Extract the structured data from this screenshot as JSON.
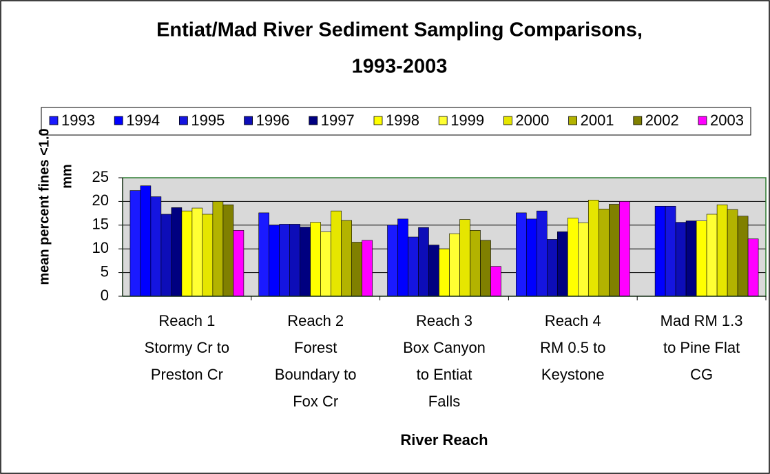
{
  "chart_data": {
    "type": "bar",
    "title": [
      "Entiat/Mad River Sediment Sampling Comparisons,",
      "1993-2003"
    ],
    "xlabel": "River Reach",
    "ylabel": [
      "mean percent fines <1.0",
      "mm"
    ],
    "categories": [
      [
        "Reach 1",
        "Stormy Cr to",
        "Preston Cr"
      ],
      [
        "Reach 2",
        "Forest",
        "Boundary to",
        "Fox Cr"
      ],
      [
        "Reach 3",
        "Box Canyon",
        "to Entiat",
        "Falls"
      ],
      [
        "Reach 4",
        "RM 0.5 to",
        "Keystone"
      ],
      [
        "Mad RM 1.3",
        "to Pine Flat",
        "CG"
      ]
    ],
    "series": [
      {
        "name": "1993",
        "color": "#1a1aff",
        "values": [
          22.3,
          17.6,
          15,
          17.6,
          null
        ]
      },
      {
        "name": "1994",
        "color": "#0000ff",
        "values": [
          23.3,
          15,
          16.3,
          16.3,
          19
        ]
      },
      {
        "name": "1995",
        "color": "#1515e0",
        "values": [
          21,
          15.2,
          12.5,
          18,
          19
        ]
      },
      {
        "name": "1996",
        "color": "#0d0db8",
        "values": [
          17.3,
          15.2,
          14.5,
          12,
          15.6
        ]
      },
      {
        "name": "1997",
        "color": "#000080",
        "values": [
          18.7,
          14.6,
          10.8,
          13.6,
          15.9
        ]
      },
      {
        "name": "1998",
        "color": "#ffff00",
        "values": [
          18,
          15.6,
          10,
          16.5,
          15.9
        ]
      },
      {
        "name": "1999",
        "color": "#ffff33",
        "values": [
          18.6,
          13.6,
          13.2,
          15.5,
          17.3
        ]
      },
      {
        "name": "2000",
        "color": "#e6e600",
        "values": [
          17.3,
          18,
          16.2,
          20.3,
          19.3
        ]
      },
      {
        "name": "2001",
        "color": "#b3b300",
        "values": [
          20,
          16,
          13.9,
          18.4,
          18.3
        ]
      },
      {
        "name": "2002",
        "color": "#808000",
        "values": [
          19.3,
          11.4,
          11.8,
          19.4,
          16.9
        ]
      },
      {
        "name": "2003",
        "color": "#ff00ff",
        "values": [
          13.9,
          11.8,
          6.3,
          20,
          12.1
        ]
      }
    ],
    "ylim": [
      0,
      25
    ],
    "yticks": [
      0,
      5,
      10,
      15,
      20,
      25
    ],
    "grid": true,
    "legend": "top"
  }
}
